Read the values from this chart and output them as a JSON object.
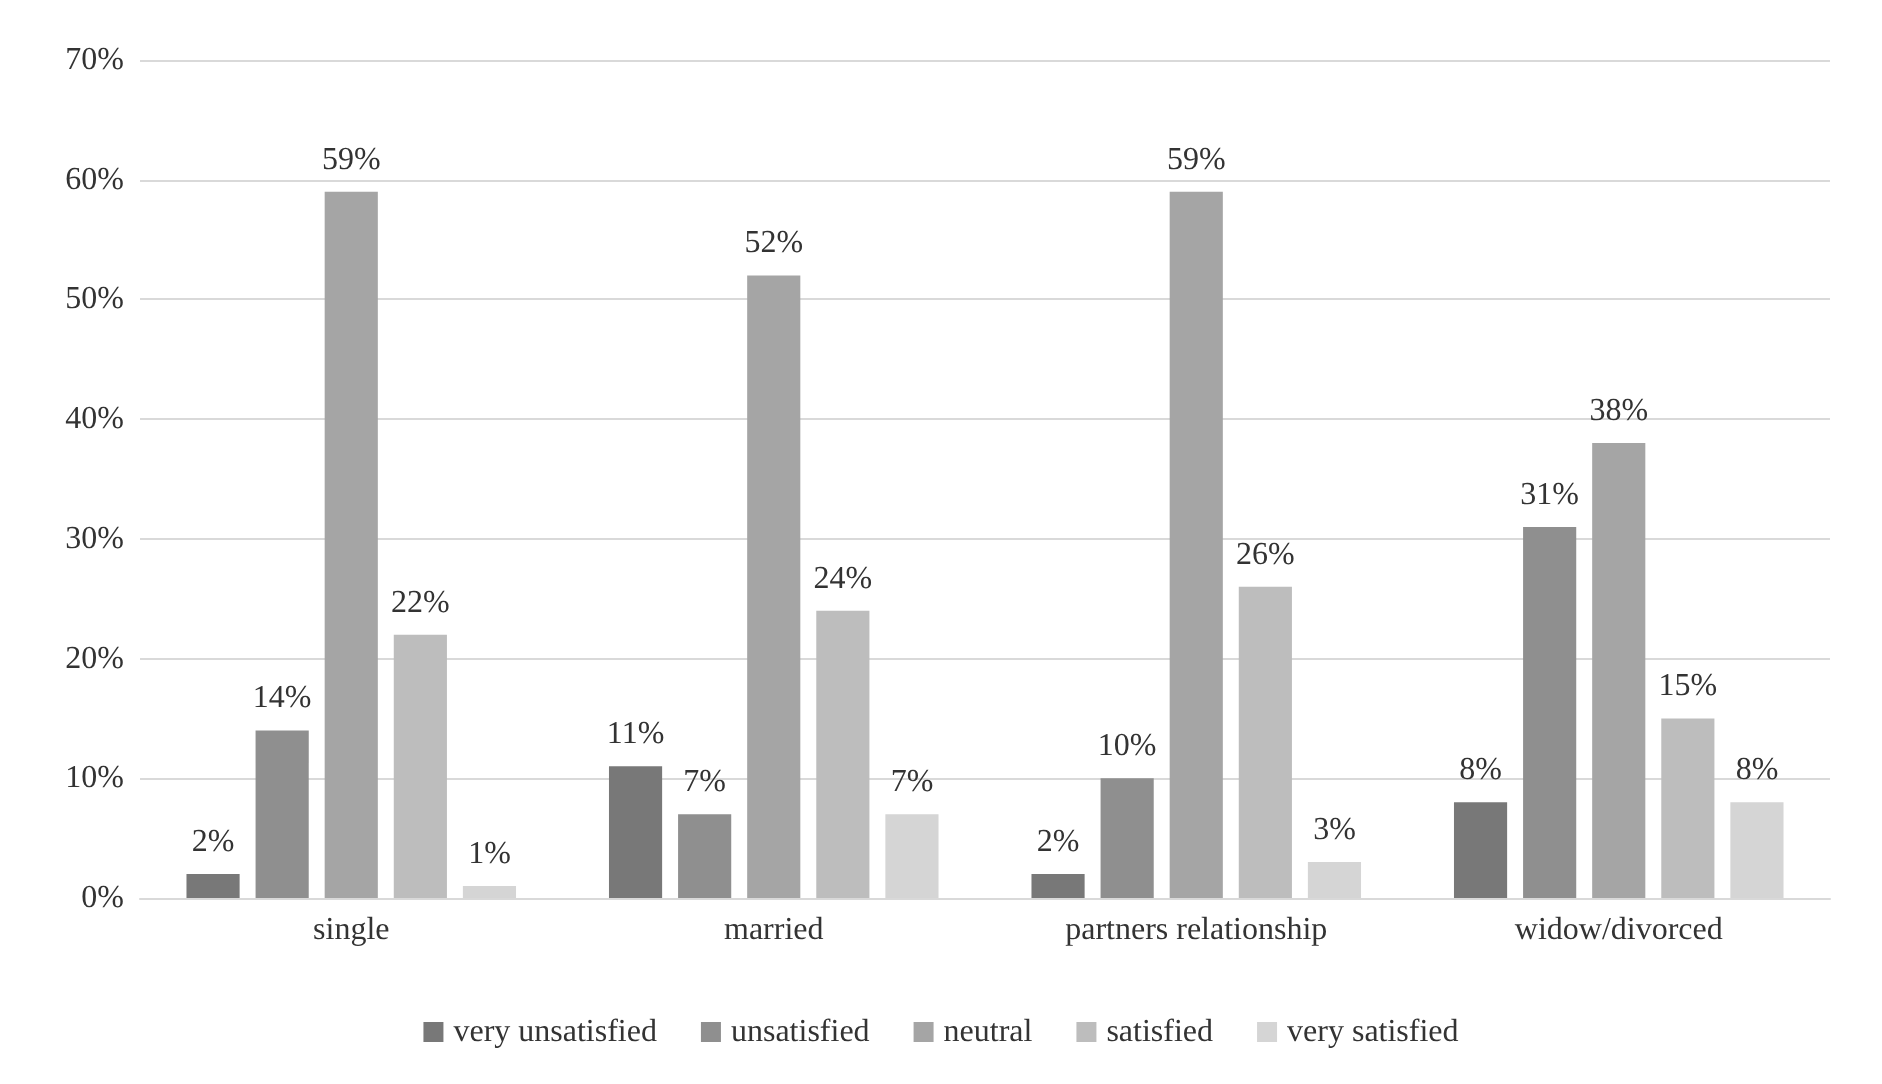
{
  "chart_data": {
    "type": "bar",
    "categories": [
      "single",
      "married",
      "partners relationship",
      "widow/divorced"
    ],
    "series": [
      {
        "name": "very unsatisfied",
        "color": "#787878",
        "values": [
          2,
          11,
          2,
          8
        ],
        "value_labels": [
          "2%",
          "11%",
          "2%",
          "8%"
        ]
      },
      {
        "name": "unsatisfied",
        "color": "#8f8f8f",
        "values": [
          14,
          7,
          10,
          31
        ],
        "value_labels": [
          "14%",
          "7%",
          "10%",
          "31%"
        ]
      },
      {
        "name": "neutral",
        "color": "#a5a5a5",
        "values": [
          59,
          52,
          59,
          38
        ],
        "value_labels": [
          "59%",
          "52%",
          "59%",
          "38%"
        ]
      },
      {
        "name": "satisfied",
        "color": "#bdbdbd",
        "values": [
          22,
          24,
          26,
          15
        ],
        "value_labels": [
          "22%",
          "24%",
          "26%",
          "15%"
        ]
      },
      {
        "name": "very satisfied",
        "color": "#d5d5d5",
        "values": [
          1,
          7,
          3,
          8
        ],
        "value_labels": [
          "1%",
          "7%",
          "3%",
          "8%"
        ]
      }
    ],
    "ylim": [
      0,
      70
    ],
    "yticks": [
      {
        "value": 0,
        "label": "0%"
      },
      {
        "value": 10,
        "label": "10%"
      },
      {
        "value": 20,
        "label": "20%"
      },
      {
        "value": 30,
        "label": "30%"
      },
      {
        "value": 40,
        "label": "40%"
      },
      {
        "value": 50,
        "label": "50%"
      },
      {
        "value": 60,
        "label": "60%"
      },
      {
        "value": 70,
        "label": "70%"
      }
    ],
    "grid": "y",
    "legend": "bottom"
  }
}
